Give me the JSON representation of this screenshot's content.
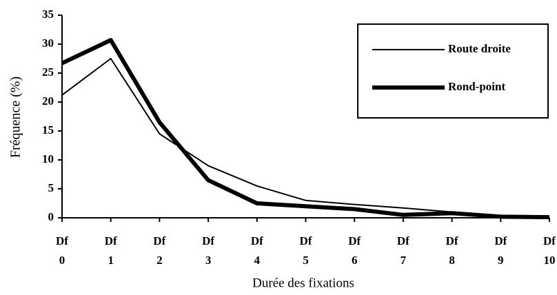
{
  "chart_data": {
    "type": "line",
    "x_label": "Durée des fixations",
    "y_label": "Fréquence (%)",
    "categories": [
      "Df\n0",
      "Df\n1",
      "Df\n2",
      "Df\n3",
      "Df\n4",
      "Df\n5",
      "Df\n6",
      "Df\n7",
      "Df\n8",
      "Df\n9",
      "Df\n10"
    ],
    "series": [
      {
        "name": "Route droite",
        "color": "#000000",
        "width": 2,
        "values": [
          21.2,
          27.5,
          14.5,
          9,
          5.5,
          3,
          2.3,
          1.7,
          1,
          0.4,
          0.2
        ]
      },
      {
        "name": "Rond-point",
        "color": "#000000",
        "width": 6,
        "values": [
          26.7,
          30.7,
          16.5,
          6.5,
          2.5,
          2,
          1.5,
          0.5,
          0.8,
          0.2,
          0.1
        ]
      }
    ],
    "ylim": [
      0,
      35
    ],
    "yticks": [
      0,
      5,
      10,
      15,
      20,
      25,
      30,
      35
    ],
    "legend": "upper-right",
    "grid": false
  }
}
